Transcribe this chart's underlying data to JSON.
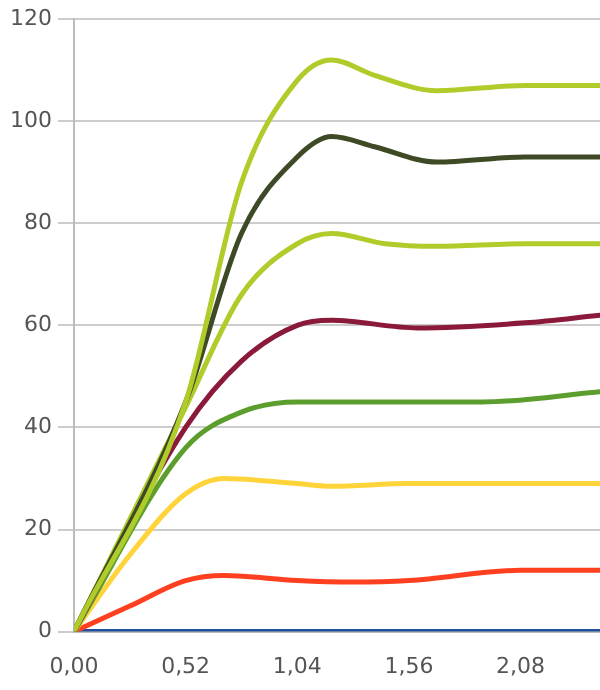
{
  "chart_data": {
    "type": "line",
    "xlim": [
      0,
      2.45
    ],
    "ylim": [
      0,
      120
    ],
    "xticks": [
      {
        "value": 0,
        "label": "0,00"
      },
      {
        "value": 0.52,
        "label": "0,52"
      },
      {
        "value": 1.04,
        "label": "1,04"
      },
      {
        "value": 1.56,
        "label": "1,56"
      },
      {
        "value": 2.08,
        "label": "2,08"
      }
    ],
    "yticks": [
      0,
      20,
      40,
      60,
      80,
      100,
      120
    ],
    "grid": "y",
    "legend": false,
    "marker": "none",
    "line_style": "solid",
    "series": [
      {
        "color": "#b0cc2a",
        "x": [
          0,
          0.52,
          0.78,
          1.04,
          1.2,
          1.4,
          1.69,
          2.1,
          2.45
        ],
        "values": [
          0,
          45,
          88,
          108,
          112,
          109,
          106,
          107,
          107
        ]
      },
      {
        "color": "#3d4a25",
        "x": [
          0,
          0.52,
          0.78,
          1.04,
          1.2,
          1.4,
          1.69,
          2.1,
          2.45
        ],
        "values": [
          0,
          45,
          78,
          93,
          97,
          95,
          92,
          93,
          93
        ]
      },
      {
        "color": "#b0cc2a",
        "x": [
          0,
          0.52,
          0.78,
          1.04,
          1.2,
          1.45,
          1.69,
          2.1,
          2.45
        ],
        "values": [
          0,
          44,
          66,
          76,
          78,
          76,
          75.5,
          76,
          76
        ]
      },
      {
        "color": "#8b1a3a",
        "x": [
          0,
          0.52,
          0.78,
          1.04,
          1.2,
          1.6,
          2.1,
          2.45
        ],
        "values": [
          0,
          40,
          53,
          60,
          61,
          59.5,
          60.5,
          62
        ]
      },
      {
        "color": "#5c9e2e",
        "x": [
          0,
          0.52,
          0.78,
          1.04,
          1.56,
          1.9,
          2.45
        ],
        "values": [
          0,
          36,
          43,
          45,
          45,
          45,
          47
        ]
      },
      {
        "color": "#ffd43a",
        "x": [
          0,
          0.26,
          0.52,
          0.7,
          1.04,
          1.2,
          1.56,
          2.08,
          2.45
        ],
        "values": [
          0,
          15,
          27,
          30,
          29,
          28.5,
          29,
          29,
          29
        ]
      },
      {
        "color": "#ff4020",
        "x": [
          0,
          0.26,
          0.52,
          0.7,
          1.04,
          1.3,
          1.56,
          2.08,
          2.45
        ],
        "values": [
          0,
          5,
          10,
          11,
          10,
          9.7,
          10,
          12,
          12
        ]
      },
      {
        "color": "#1f4e9a",
        "x": [
          0,
          2.45
        ],
        "values": [
          0,
          0
        ]
      }
    ]
  }
}
